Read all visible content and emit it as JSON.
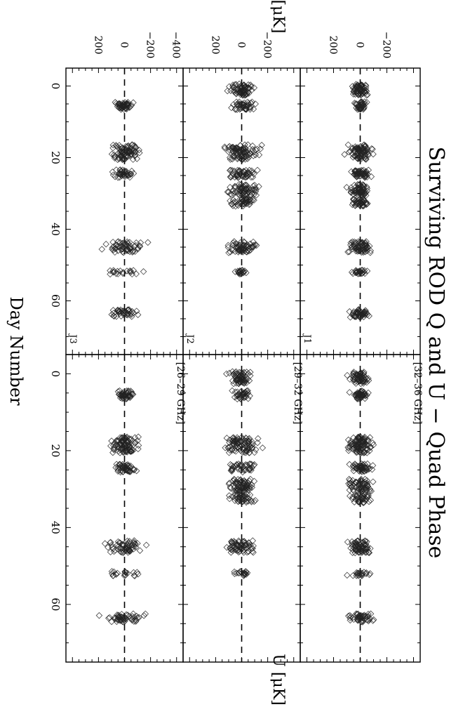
{
  "title": "Surviving ROD Q and U − Quad Phase",
  "xlabel": "Day Number",
  "q_label": "Q  [μK]",
  "u_label": "U  [μK]",
  "chart_data": {
    "type": "scatter",
    "marker": "diamond",
    "title": "Surviving ROD Q and U − Quad Phase",
    "xlabel": "Day Number",
    "x_range": [
      -5,
      75
    ],
    "x_ticks": [
      0,
      20,
      40,
      60
    ],
    "y_ticks": [
      -400,
      -200,
      0,
      200
    ],
    "panel_y_ticks": [
      [
        -200,
        0,
        200
      ],
      [
        -200,
        0,
        200
      ],
      [
        -400,
        -200,
        0,
        200
      ]
    ],
    "panel_y_tick_labels": [
      [
        "−200",
        "0",
        "200"
      ],
      [
        "−200",
        "0",
        "200"
      ],
      [
        "−400",
        "−200",
        "0",
        "200"
      ]
    ],
    "x_tick_labels": [
      "0",
      "20",
      "40",
      "60"
    ],
    "panel_y_range": [
      -450,
      450
    ],
    "zero_line": "dashed",
    "observing_days": [
      1,
      5,
      17,
      18,
      19,
      20,
      24,
      25,
      28,
      29,
      30,
      31,
      32,
      33,
      44,
      45,
      46,
      52,
      63,
      64
    ],
    "panels": [
      {
        "stokes": "Q",
        "channel": "J1",
        "band": "",
        "days": [
          0,
          1,
          2,
          5,
          6,
          17,
          18,
          19,
          20,
          24,
          25,
          28,
          29,
          30,
          32,
          33,
          44,
          45,
          46,
          52,
          63,
          64
        ],
        "spread": [
          80,
          85,
          80,
          75,
          65,
          120,
          130,
          125,
          100,
          110,
          115,
          110,
          100,
          115,
          95,
          100,
          130,
          125,
          120,
          90,
          120,
          110
        ]
      },
      {
        "stokes": "U",
        "channel": "J1",
        "band": "[32–36 GHz]",
        "days": [
          0,
          1,
          2,
          5,
          6,
          17,
          18,
          19,
          20,
          24,
          25,
          28,
          29,
          30,
          32,
          33,
          44,
          45,
          46,
          52,
          63,
          64
        ],
        "spread": [
          100,
          105,
          95,
          100,
          80,
          130,
          140,
          125,
          110,
          130,
          125,
          120,
          115,
          110,
          120,
          110,
          130,
          125,
          120,
          120,
          130,
          150
        ]
      },
      {
        "stokes": "Q",
        "channel": "J2",
        "band": "",
        "days": [
          0,
          1,
          2,
          5,
          6,
          17,
          18,
          19,
          20,
          24,
          25,
          28,
          29,
          30,
          32,
          33,
          44,
          45,
          46,
          52
        ],
        "spread": [
          160,
          150,
          140,
          140,
          130,
          200,
          190,
          180,
          170,
          170,
          165,
          170,
          160,
          160,
          150,
          140,
          170,
          165,
          155,
          100
        ]
      },
      {
        "stokes": "U",
        "channel": "J2",
        "band": "[29–32 GHz]",
        "days": [
          0,
          1,
          2,
          5,
          6,
          17,
          18,
          19,
          20,
          24,
          25,
          28,
          29,
          30,
          32,
          33,
          44,
          45,
          46,
          52
        ],
        "spread": [
          120,
          115,
          110,
          100,
          90,
          200,
          190,
          180,
          170,
          160,
          150,
          165,
          160,
          150,
          140,
          130,
          180,
          170,
          160,
          110
        ]
      },
      {
        "stokes": "Q",
        "channel": "J3",
        "band": "",
        "days": [
          5,
          6,
          17,
          18,
          19,
          20,
          24,
          25,
          44,
          45,
          46,
          52,
          63,
          64
        ],
        "spread": [
          110,
          100,
          170,
          160,
          150,
          140,
          120,
          110,
          210,
          200,
          190,
          240,
          190,
          180
        ]
      },
      {
        "stokes": "U",
        "channel": "J3",
        "band": "[26–29 GHz]",
        "days": [
          5,
          6,
          17,
          18,
          19,
          20,
          24,
          25,
          44,
          45,
          46,
          52,
          63,
          64
        ],
        "spread": [
          100,
          95,
          170,
          160,
          150,
          140,
          130,
          120,
          220,
          200,
          190,
          220,
          230,
          200
        ]
      }
    ]
  }
}
